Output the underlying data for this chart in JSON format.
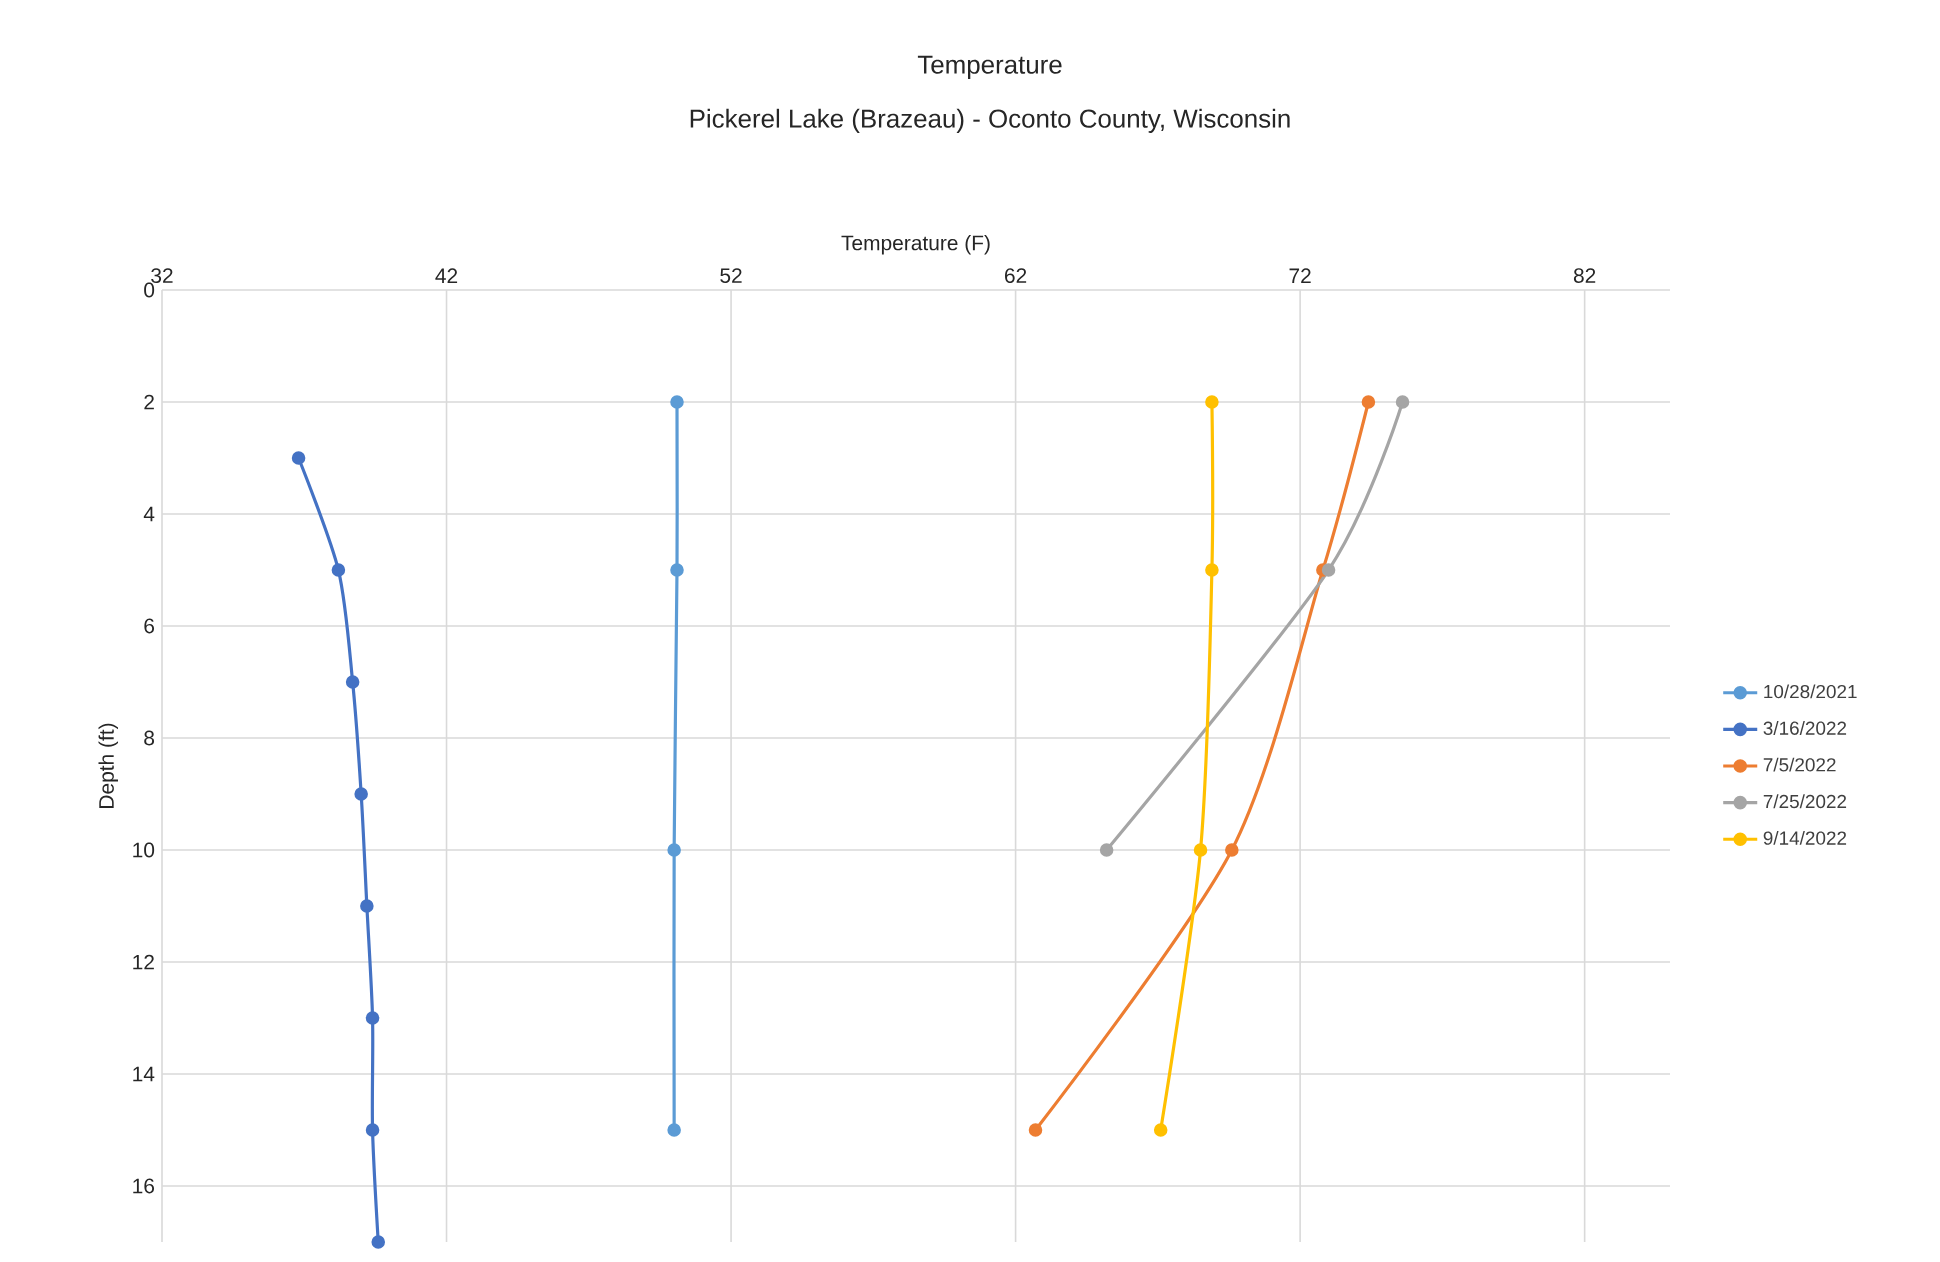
{
  "chart_data": {
    "type": "line",
    "title": "Temperature",
    "subtitle": "Pickerel Lake (Brazeau) - Oconto County, Wisconsin",
    "xlabel": "Temperature (F)",
    "ylabel": "Depth (ft)",
    "xlim": [
      32,
      85
    ],
    "xticks": [
      32,
      42,
      52,
      62,
      72,
      82
    ],
    "ylim": [
      17,
      0
    ],
    "yticks": [
      0,
      2,
      4,
      6,
      8,
      10,
      12,
      14,
      16
    ],
    "grid": true,
    "legend": "right",
    "marker": "circle",
    "line_style": "solid",
    "series": [
      {
        "name": "10/28/2021",
        "color": "#5b9bd5",
        "x": [
          50.1,
          50.1,
          50.0,
          50.0
        ],
        "values": [
          2,
          5,
          10,
          15
        ]
      },
      {
        "name": "3/16/2022",
        "color": "#4472c4",
        "x": [
          36.8,
          38.2,
          38.7,
          39.0,
          39.2,
          39.4,
          39.4,
          39.6
        ],
        "values": [
          3,
          5,
          7,
          9,
          11,
          13,
          15,
          17
        ]
      },
      {
        "name": "7/5/2022",
        "color": "#ed7d31",
        "x": [
          74.4,
          72.8,
          69.6,
          62.7
        ],
        "values": [
          2,
          5,
          10,
          15
        ]
      },
      {
        "name": "7/25/2022",
        "color": "#a5a5a5",
        "x": [
          75.6,
          73.0,
          65.2
        ],
        "values": [
          2,
          5,
          10
        ]
      },
      {
        "name": "9/14/2022",
        "color": "#ffc000",
        "x": [
          68.9,
          68.9,
          68.5,
          67.1
        ],
        "values": [
          2,
          5,
          10,
          15
        ]
      }
    ]
  }
}
